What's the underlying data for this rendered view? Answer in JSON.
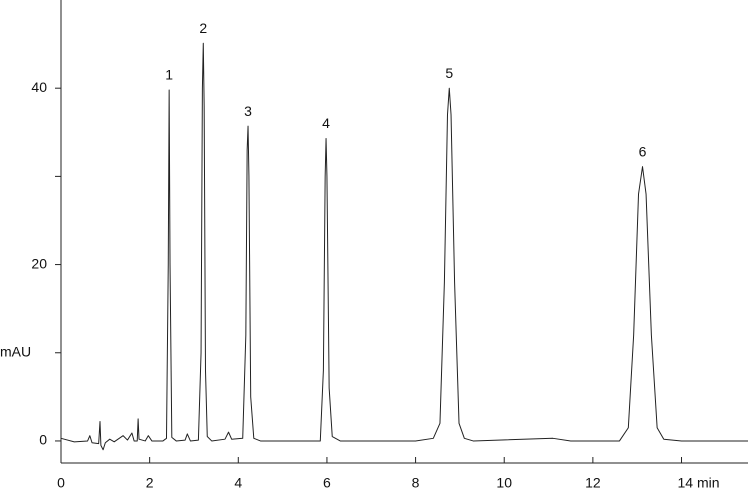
{
  "chart_data": {
    "type": "line",
    "ylabel": "mAU",
    "xlim": [
      0,
      15.5
    ],
    "ylim": [
      -2.5,
      50
    ],
    "xticks": [
      0,
      2,
      4,
      6,
      8,
      10,
      12,
      {
        "value": 14,
        "label": "14 min"
      }
    ],
    "yticks": [
      0,
      20,
      40
    ],
    "yticks_minor": [
      10,
      30
    ],
    "color": "#222222",
    "x": [
      0,
      0.3,
      0.6,
      0.65,
      0.7,
      0.85,
      0.88,
      0.9,
      0.95,
      1.0,
      1.1,
      1.2,
      1.4,
      1.5,
      1.6,
      1.65,
      1.72,
      1.74,
      1.76,
      1.9,
      1.97,
      2.05,
      2.3,
      2.38,
      2.42,
      2.44,
      2.46,
      2.5,
      2.6,
      2.8,
      2.85,
      2.92,
      3.1,
      3.16,
      3.19,
      3.21,
      3.23,
      3.26,
      3.3,
      3.4,
      3.7,
      3.78,
      3.85,
      4.1,
      4.17,
      4.2,
      4.22,
      4.24,
      4.28,
      4.35,
      4.5,
      5.85,
      5.92,
      5.96,
      5.98,
      6.0,
      6.05,
      6.12,
      6.3,
      8.0,
      8.4,
      8.55,
      8.65,
      8.72,
      8.76,
      8.8,
      8.88,
      8.98,
      9.1,
      9.3,
      11.1,
      11.5,
      12.6,
      12.8,
      12.92,
      13.03,
      13.12,
      13.2,
      13.32,
      13.45,
      13.6,
      14,
      15.5
    ],
    "values": [
      0.3,
      -0.1,
      0,
      0.6,
      -0.2,
      -0.3,
      2.2,
      -0.5,
      -1,
      -0.2,
      0.2,
      -0.1,
      0.6,
      0.1,
      0.9,
      0,
      0,
      2.5,
      0.2,
      0,
      0.6,
      0,
      0,
      0.3,
      20,
      39.8,
      20,
      0.4,
      0,
      0.1,
      0.8,
      0,
      0.1,
      10,
      40,
      45.1,
      38,
      8,
      0.5,
      0,
      0.2,
      1.0,
      0.2,
      0.3,
      12,
      33,
      35.7,
      30,
      5,
      0.3,
      0,
      0,
      8,
      30,
      34.3,
      30,
      6,
      0.5,
      0,
      0,
      0.3,
      2,
      18,
      37,
      40,
      37,
      18,
      2,
      0.3,
      0,
      0.3,
      0,
      0,
      1.5,
      12,
      28,
      31.1,
      28,
      12,
      1.5,
      0.2,
      0,
      0
    ],
    "peaks": [
      {
        "label": "1",
        "time": 2.44,
        "height": 39.8
      },
      {
        "label": "2",
        "time": 3.21,
        "height": 45.1
      },
      {
        "label": "3",
        "time": 4.22,
        "height": 35.7
      },
      {
        "label": "4",
        "time": 5.98,
        "height": 34.3
      },
      {
        "label": "5",
        "time": 8.76,
        "height": 40.0
      },
      {
        "label": "6",
        "time": 13.12,
        "height": 31.1
      }
    ]
  }
}
